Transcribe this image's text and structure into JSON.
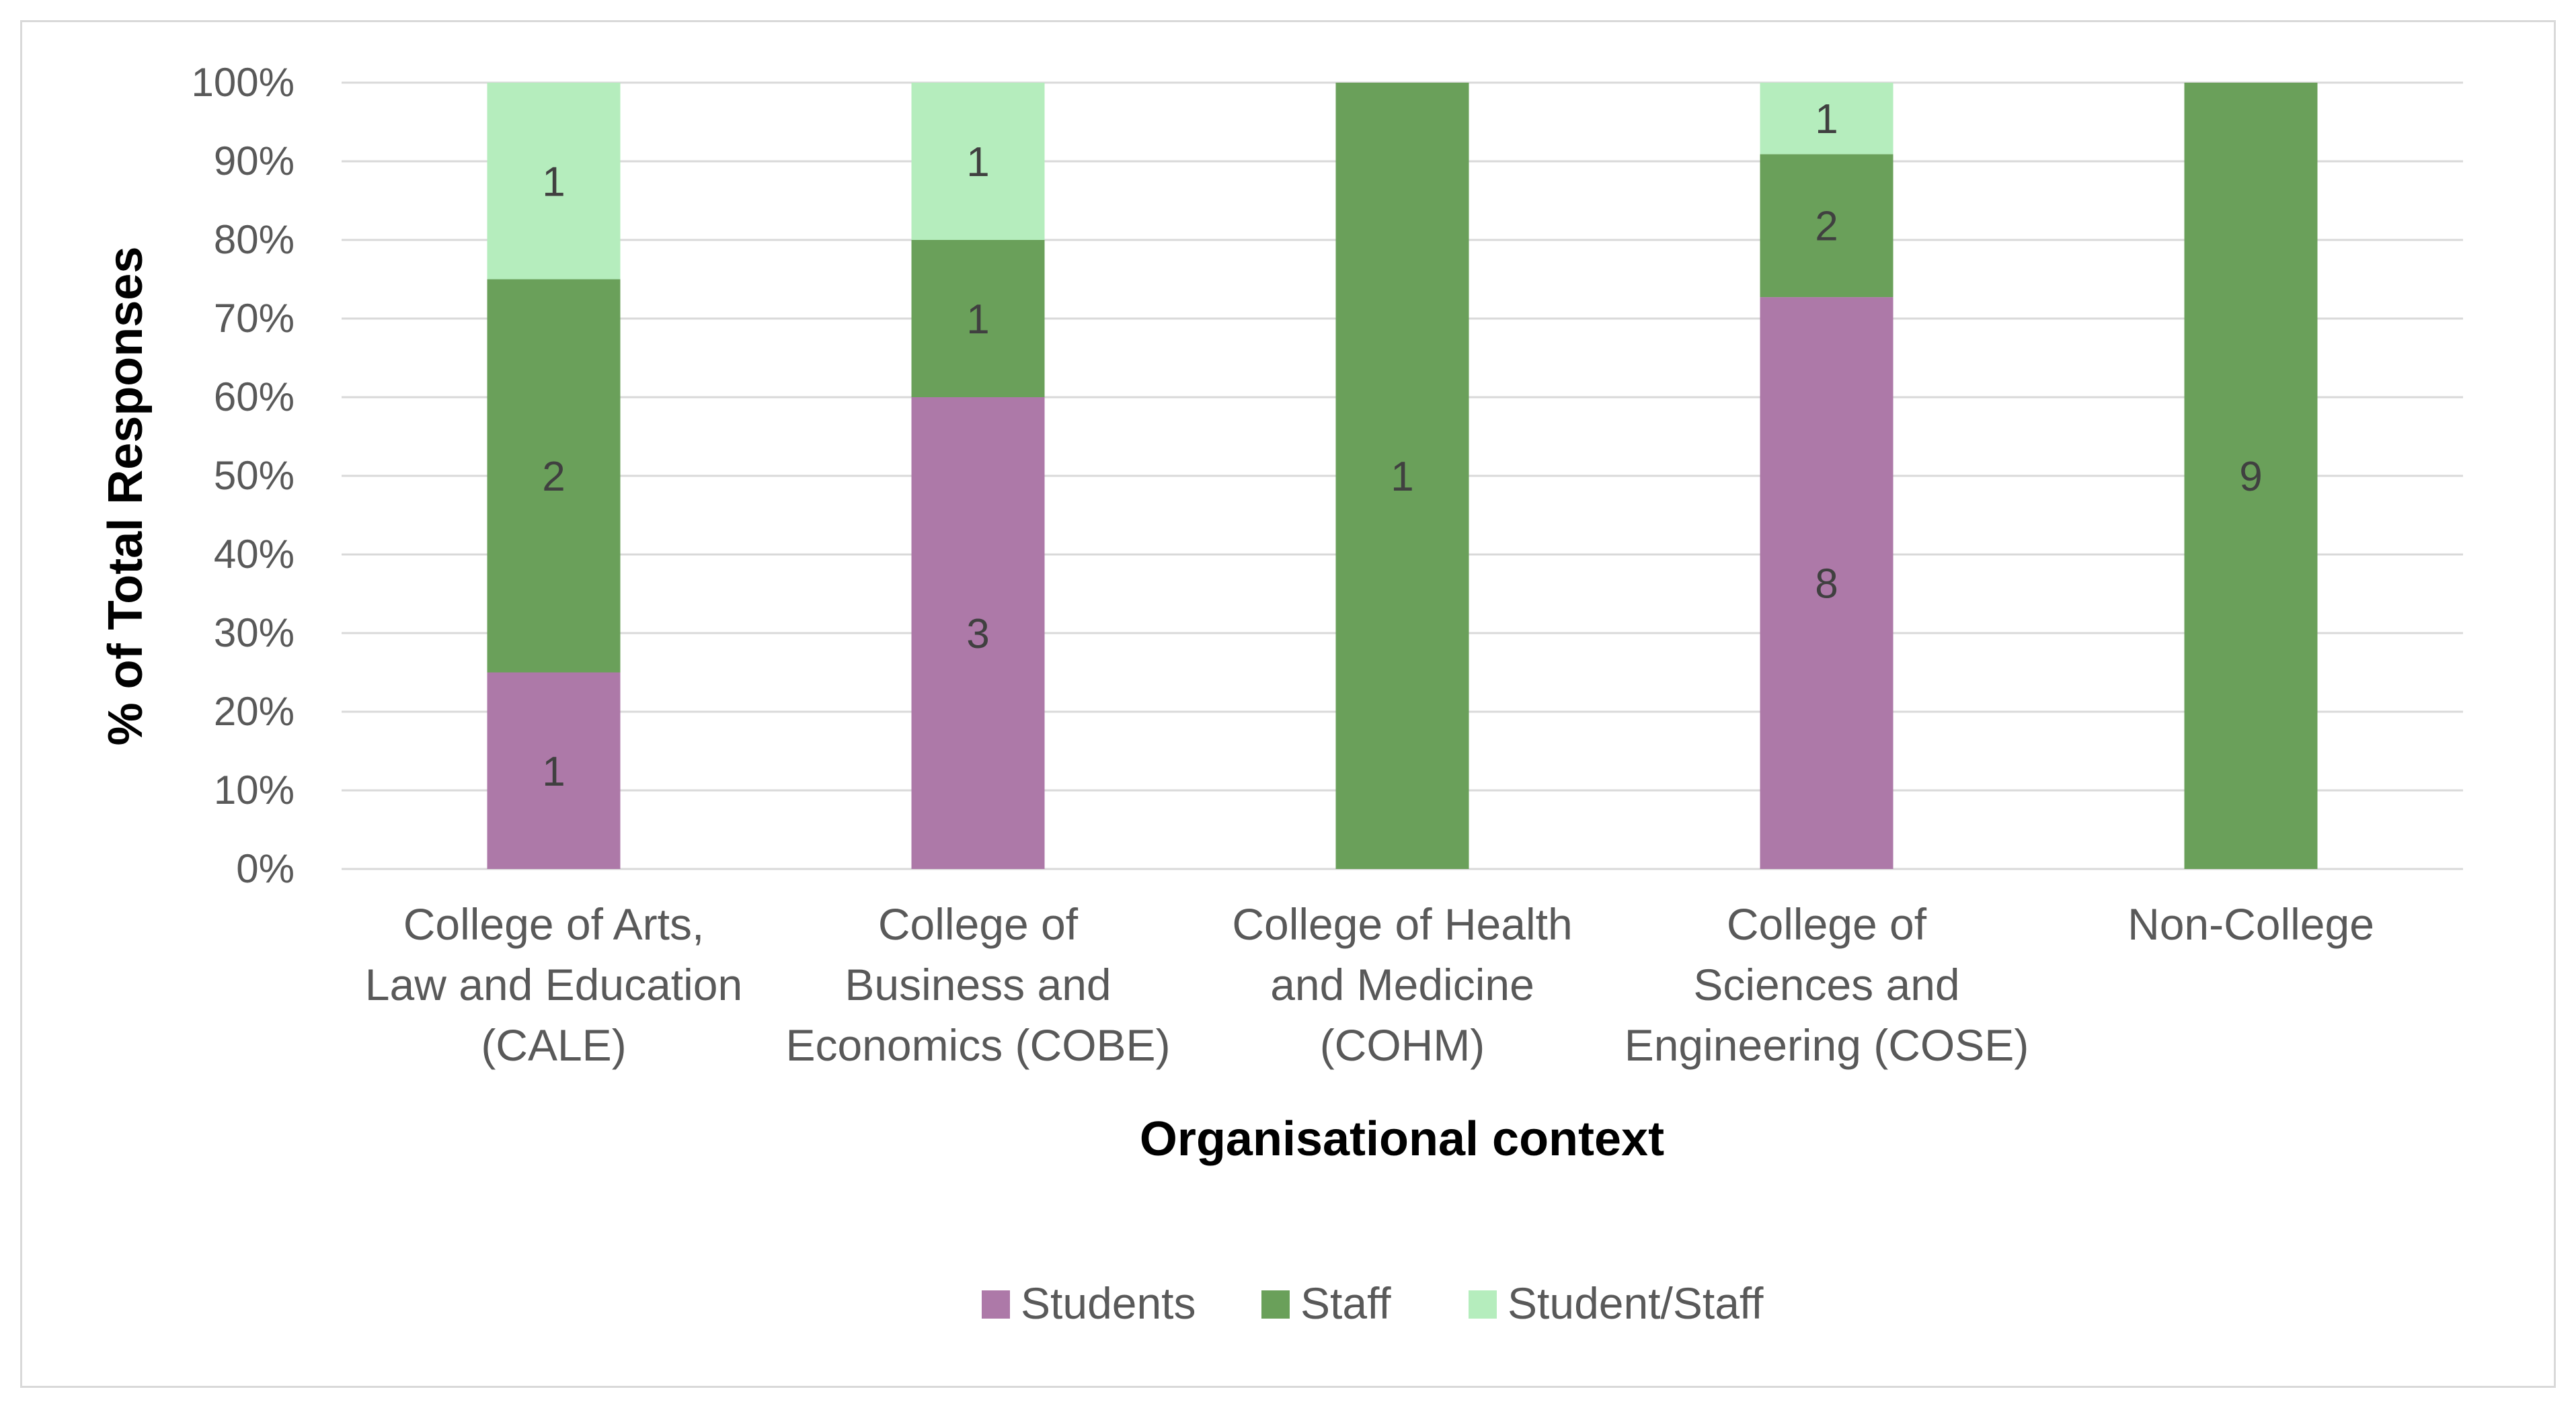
{
  "chart_data": {
    "type": "bar",
    "stacked": true,
    "percent_stacked": true,
    "title": "",
    "xlabel": "Organisational context",
    "ylabel": "% of Total Responses",
    "ylim": [
      0,
      100
    ],
    "yticks": [
      "0%",
      "10%",
      "20%",
      "30%",
      "40%",
      "50%",
      "60%",
      "70%",
      "80%",
      "90%",
      "100%"
    ],
    "grid": true,
    "legend_position": "bottom",
    "categories": [
      [
        "College of Arts,",
        "Law and Education",
        "(CALE)"
      ],
      [
        "College of",
        "Business and",
        "Economics (COBE)"
      ],
      [
        "College of Health",
        "and Medicine",
        "(COHM)"
      ],
      [
        "College of",
        "Sciences and",
        "Engineering (COSE)"
      ],
      [
        "Non-College"
      ]
    ],
    "series": [
      {
        "name": "Students",
        "color": "#ad79a8",
        "values": [
          1,
          3,
          0,
          8,
          0
        ]
      },
      {
        "name": "Staff",
        "color": "#6aa05a",
        "values": [
          2,
          1,
          1,
          2,
          9
        ]
      },
      {
        "name": "Student/Staff",
        "color": "#b5edbd",
        "values": [
          1,
          1,
          0,
          1,
          0
        ]
      }
    ]
  }
}
